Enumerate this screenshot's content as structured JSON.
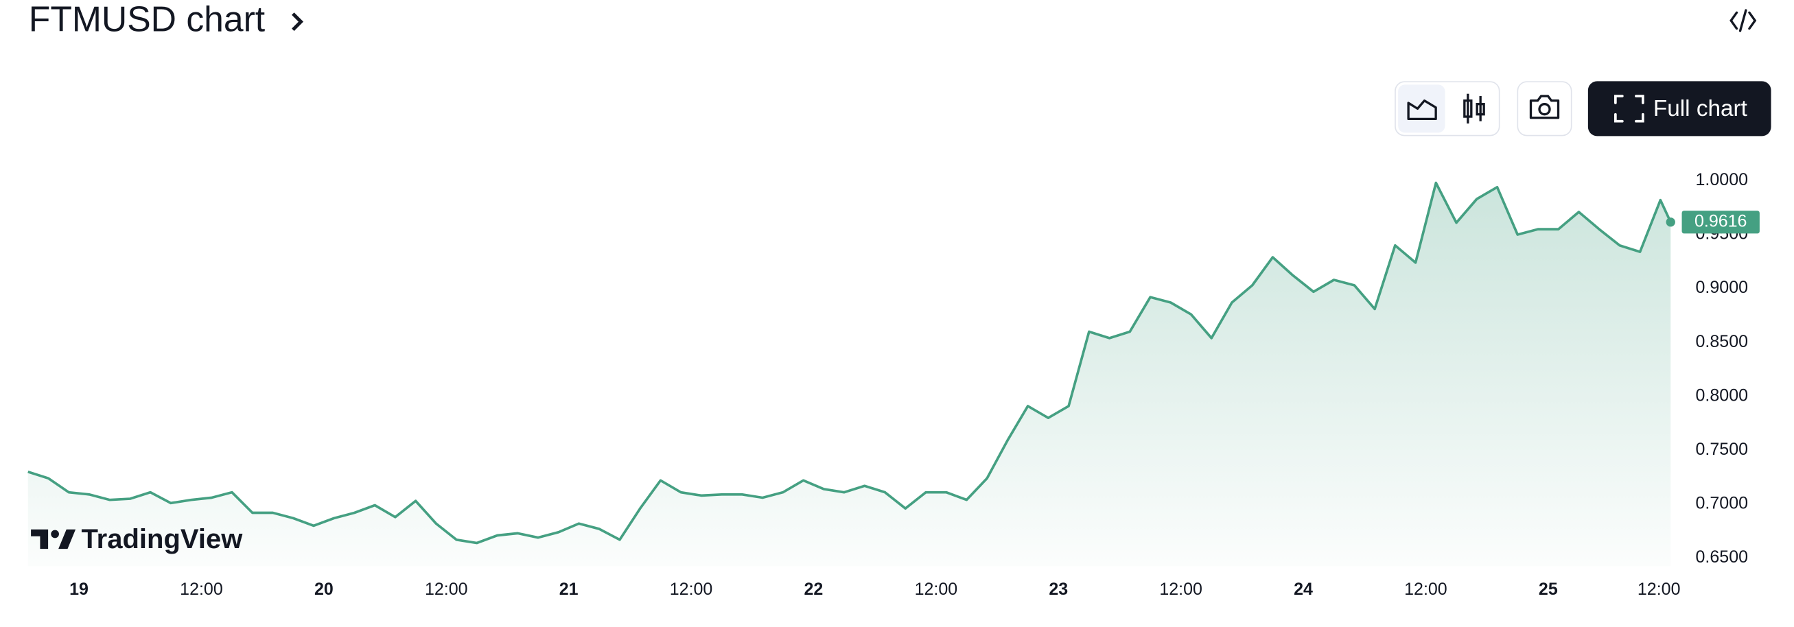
{
  "header": {
    "title": "FTMUSD chart"
  },
  "toolbar": {
    "full_chart": "Full chart"
  },
  "watermark": "TradingView",
  "chart_data": {
    "type": "area",
    "x": [
      -5,
      -3,
      -1,
      1,
      3,
      5,
      7,
      9,
      11,
      13,
      15,
      17,
      19,
      21,
      23,
      25,
      27,
      29,
      31,
      33,
      35,
      37,
      39,
      41,
      43,
      45,
      47,
      49,
      51,
      53,
      55,
      57,
      59,
      61,
      63,
      65,
      67,
      69,
      71,
      73,
      75,
      77,
      79,
      81,
      83,
      85,
      87,
      89,
      91,
      93,
      95,
      97,
      99,
      101,
      103,
      105,
      107,
      109,
      111,
      113,
      115,
      117,
      119,
      121,
      123,
      125,
      127,
      129,
      131,
      133,
      135,
      137,
      139,
      141,
      143,
      145,
      147,
      149,
      151,
      153,
      155,
      156
    ],
    "series": [
      {
        "name": "FTMUSD",
        "color": "#45a082",
        "values": [
          0.73,
          0.724,
          0.711,
          0.709,
          0.704,
          0.705,
          0.711,
          0.701,
          0.704,
          0.706,
          0.711,
          0.692,
          0.692,
          0.687,
          0.68,
          0.687,
          0.692,
          0.699,
          0.688,
          0.703,
          0.682,
          0.667,
          0.664,
          0.671,
          0.673,
          0.669,
          0.674,
          0.682,
          0.677,
          0.667,
          0.696,
          0.722,
          0.711,
          0.708,
          0.709,
          0.709,
          0.706,
          0.711,
          0.722,
          0.714,
          0.711,
          0.717,
          0.711,
          0.696,
          0.711,
          0.711,
          0.704,
          0.724,
          0.759,
          0.791,
          0.78,
          0.791,
          0.86,
          0.854,
          0.86,
          0.892,
          0.887,
          0.876,
          0.854,
          0.887,
          0.903,
          0.929,
          0.912,
          0.897,
          0.908,
          0.903,
          0.881,
          0.94,
          0.924,
          0.998,
          0.961,
          0.983,
          0.994,
          0.95,
          0.955,
          0.955,
          0.971,
          0.955,
          0.94,
          0.934,
          0.982,
          0.9616
        ]
      }
    ],
    "xlim": [
      -4.93,
      156.2
    ],
    "xticks": [
      {
        "value": 0,
        "label": "19"
      },
      {
        "value": 12,
        "label": "12:00"
      },
      {
        "value": 24,
        "label": "20"
      },
      {
        "value": 36,
        "label": "12:00"
      },
      {
        "value": 48,
        "label": "21"
      },
      {
        "value": 60,
        "label": "12:00"
      },
      {
        "value": 72,
        "label": "22"
      },
      {
        "value": 84,
        "label": "12:00"
      },
      {
        "value": 96,
        "label": "23"
      },
      {
        "value": 108,
        "label": "12:00"
      },
      {
        "value": 120,
        "label": "24"
      },
      {
        "value": 132,
        "label": "12:00"
      },
      {
        "value": 144,
        "label": "25"
      },
      {
        "value": 156,
        "label": "12:00"
      }
    ],
    "ylim": [
      0.6426,
      1.0138
    ],
    "yticks": [
      {
        "value": 0.65,
        "label": "0.6500"
      },
      {
        "value": 0.7,
        "label": "0.7000"
      },
      {
        "value": 0.75,
        "label": "0.7500"
      },
      {
        "value": 0.8,
        "label": "0.8000"
      },
      {
        "value": 0.85,
        "label": "0.8500"
      },
      {
        "value": 0.9,
        "label": "0.9000"
      },
      {
        "value": 0.95,
        "label": "0.9500"
      },
      {
        "value": 1.0,
        "label": "1.0000"
      }
    ]
  }
}
